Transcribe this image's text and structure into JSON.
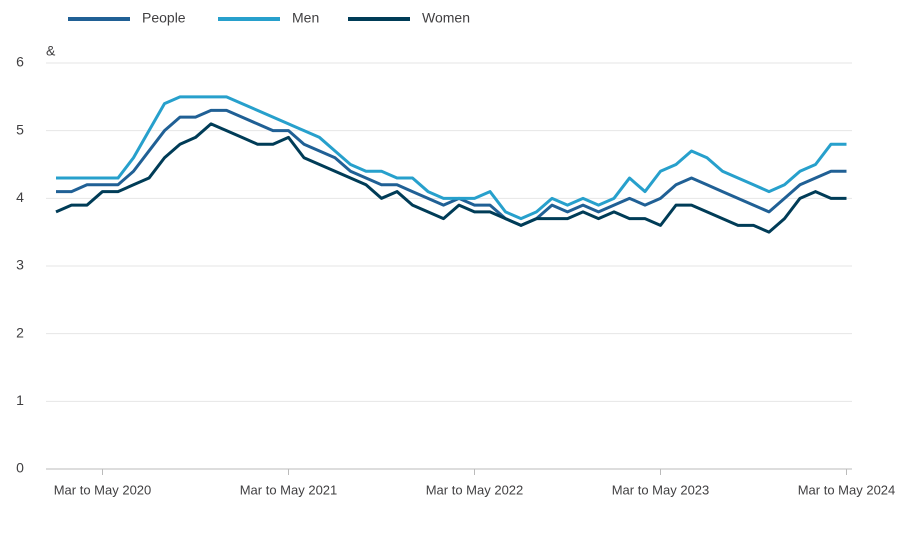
{
  "chart_data": {
    "type": "line",
    "y_label": "&",
    "categories": [
      null,
      null,
      null,
      "Mar to May 2020",
      null,
      null,
      null,
      null,
      null,
      null,
      null,
      null,
      null,
      null,
      null,
      "Mar to May 2021",
      null,
      null,
      null,
      null,
      null,
      null,
      null,
      null,
      null,
      null,
      null,
      "Mar to May 2022",
      null,
      null,
      null,
      null,
      null,
      null,
      null,
      null,
      null,
      null,
      null,
      "Mar to May 2023",
      null,
      null,
      null,
      null,
      null,
      null,
      null,
      null,
      null,
      null,
      null,
      "Mar to May 2024"
    ],
    "series": [
      {
        "name": "People",
        "color": "#206095",
        "values": [
          4.1,
          4.1,
          4.2,
          4.2,
          4.2,
          4.4,
          4.7,
          5.0,
          5.2,
          5.2,
          5.3,
          5.3,
          5.2,
          5.1,
          5.0,
          5.0,
          4.8,
          4.7,
          4.6,
          4.4,
          4.3,
          4.2,
          4.2,
          4.1,
          4.0,
          3.9,
          4.0,
          3.9,
          3.9,
          3.7,
          3.6,
          3.7,
          3.9,
          3.8,
          3.9,
          3.8,
          3.9,
          4.0,
          3.9,
          4.0,
          4.2,
          4.3,
          4.2,
          4.1,
          4.0,
          3.9,
          3.8,
          4.0,
          4.2,
          4.3,
          4.4,
          4.4
        ]
      },
      {
        "name": "Men",
        "color": "#27a0cc",
        "values": [
          4.3,
          4.3,
          4.3,
          4.3,
          4.3,
          4.6,
          5.0,
          5.4,
          5.5,
          5.5,
          5.5,
          5.5,
          5.4,
          5.3,
          5.2,
          5.1,
          5.0,
          4.9,
          4.7,
          4.5,
          4.4,
          4.4,
          4.3,
          4.3,
          4.1,
          4.0,
          4.0,
          4.0,
          4.1,
          3.8,
          3.7,
          3.8,
          4.0,
          3.9,
          4.0,
          3.9,
          4.0,
          4.3,
          4.1,
          4.4,
          4.5,
          4.7,
          4.6,
          4.4,
          4.3,
          4.2,
          4.1,
          4.2,
          4.4,
          4.5,
          4.8,
          4.8
        ]
      },
      {
        "name": "Women",
        "color": "#003c57",
        "values": [
          3.8,
          3.9,
          3.9,
          4.1,
          4.1,
          4.2,
          4.3,
          4.6,
          4.8,
          4.9,
          5.1,
          5.0,
          4.9,
          4.8,
          4.8,
          4.9,
          4.6,
          4.5,
          4.4,
          4.3,
          4.2,
          4.0,
          4.1,
          3.9,
          3.8,
          3.7,
          3.9,
          3.8,
          3.8,
          3.7,
          3.6,
          3.7,
          3.7,
          3.7,
          3.8,
          3.7,
          3.8,
          3.7,
          3.7,
          3.6,
          3.9,
          3.9,
          3.8,
          3.7,
          3.6,
          3.6,
          3.5,
          3.7,
          4.0,
          4.1,
          4.0,
          4.0
        ]
      }
    ],
    "ylim": [
      0,
      6
    ],
    "yticks": [
      0,
      1,
      2,
      3,
      4,
      5,
      6
    ],
    "grid": true,
    "legend": "top"
  }
}
